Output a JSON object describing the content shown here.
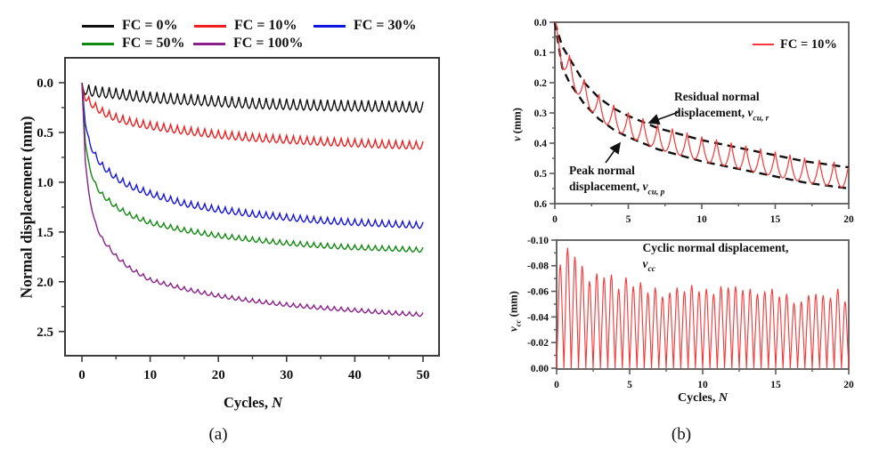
{
  "panel_a": {
    "caption": "(a)",
    "ylabel": "Normal displacement (mm)",
    "xlabel_pre": "Cycles, ",
    "xlabel_var": "N"
  },
  "panel_b": {
    "caption": "(b)",
    "xlabel_pre": "Cycles, ",
    "xlabel_var": "N",
    "top_ylabel_var": "v",
    "top_ylabel_rest": " (mm)",
    "bottom_ylabel_var": "v",
    "bottom_ylabel_sub": "cc",
    "bottom_ylabel_rest": " (mm)",
    "annotations": {
      "residual_line1": "Residual normal",
      "residual_line2_pre": "displacement, ",
      "residual_var": "v",
      "residual_sub": "cu, r",
      "peak_line1": "Peak normal",
      "peak_line2_pre": "displacement, ",
      "peak_var": "v",
      "peak_sub": "cu, p",
      "cyclic_pre": "Cyclic normal displacement, ",
      "cyclic_var": "v",
      "cyclic_sub": "cc"
    }
  },
  "chart_data": [
    {
      "id": "panel-a",
      "type": "line",
      "title": "",
      "xlabel": "Cycles, N",
      "ylabel": "Normal displacement (mm)",
      "xlim": [
        -2.6,
        52.4
      ],
      "ylim": [
        -0.25,
        2.75
      ],
      "y_inverted": true,
      "grid": false,
      "legend_position": "above",
      "xticks": [
        0,
        10,
        20,
        30,
        40,
        50
      ],
      "xtick_labels": [
        "0",
        "10",
        "20",
        "30",
        "40",
        "50"
      ],
      "xticks_minor": [
        5,
        15,
        25,
        35,
        45
      ],
      "yticks": [
        0.0,
        0.5,
        1.0,
        1.5,
        2.0,
        2.5
      ],
      "ytick_labels": [
        "0.0",
        "0.5",
        "1.0",
        "1.5",
        "2.0",
        "2.5"
      ],
      "yticks_minor": [
        0.25,
        0.75,
        1.25,
        1.75,
        2.25
      ],
      "n": [
        0,
        0.5,
        1,
        2,
        3,
        5,
        7,
        10,
        15,
        20,
        25,
        30,
        35,
        40,
        45,
        50
      ],
      "series": [
        {
          "name": "FC = 0%",
          "color": "#111111",
          "amplitude": 0.11,
          "residual": [
            0,
            0.01,
            0.02,
            0.03,
            0.04,
            0.05,
            0.07,
            0.09,
            0.11,
            0.13,
            0.15,
            0.16,
            0.17,
            0.175,
            0.18,
            0.19
          ]
        },
        {
          "name": "FC = 10%",
          "color": "#f01e1e",
          "amplitude": 0.08,
          "residual": [
            0,
            0.1,
            0.14,
            0.2,
            0.25,
            0.31,
            0.35,
            0.39,
            0.44,
            0.48,
            0.51,
            0.53,
            0.55,
            0.565,
            0.58,
            0.59
          ]
        },
        {
          "name": "FC = 30%",
          "color": "#1414e0",
          "amplitude": 0.065,
          "residual": [
            0,
            0.35,
            0.55,
            0.7,
            0.8,
            0.92,
            1.0,
            1.08,
            1.18,
            1.24,
            1.285,
            1.32,
            1.35,
            1.37,
            1.385,
            1.4
          ]
        },
        {
          "name": "FC = 50%",
          "color": "#0f8a0f",
          "amplitude": 0.05,
          "residual": [
            0,
            0.55,
            0.8,
            1.0,
            1.1,
            1.22,
            1.3,
            1.38,
            1.455,
            1.51,
            1.55,
            1.585,
            1.61,
            1.63,
            1.64,
            1.655
          ]
        },
        {
          "name": "FC = 100%",
          "color": "#8a1f8a",
          "amplitude": 0.04,
          "residual": [
            0,
            0.75,
            1.1,
            1.4,
            1.55,
            1.72,
            1.84,
            1.96,
            2.05,
            2.12,
            2.17,
            2.21,
            2.24,
            2.265,
            2.29,
            2.31
          ]
        }
      ]
    },
    {
      "id": "panel-b-top",
      "type": "line",
      "title": "",
      "xlabel": "",
      "ylabel": "v (mm)",
      "xlim": [
        0,
        20
      ],
      "ylim": [
        0,
        0.6
      ],
      "y_inverted": true,
      "grid": false,
      "legend_position": "upper right",
      "xticks": [
        0,
        5,
        10,
        15,
        20
      ],
      "xtick_labels": [
        "0",
        "5",
        "10",
        "15",
        "20"
      ],
      "xticks_minor": [
        2.5,
        7.5,
        12.5,
        17.5
      ],
      "yticks": [
        0.0,
        0.1,
        0.2,
        0.3,
        0.4,
        0.5,
        0.6
      ],
      "ytick_labels": [
        "0.0",
        "0.1",
        "0.2",
        "0.3",
        "0.4",
        "0.5",
        "0.6"
      ],
      "yticks_minor": [
        0.05,
        0.15,
        0.25,
        0.35,
        0.45,
        0.55
      ],
      "n": [
        0,
        0.5,
        1,
        2,
        3,
        4,
        5,
        7,
        10,
        12,
        15,
        17,
        20
      ],
      "series": [
        {
          "name": "FC = 10%",
          "color": "#f93535",
          "residual": [
            0,
            0.08,
            0.12,
            0.2,
            0.25,
            0.285,
            0.31,
            0.35,
            0.39,
            0.41,
            0.44,
            0.46,
            0.48
          ],
          "peak": [
            0,
            0.15,
            0.2,
            0.27,
            0.32,
            0.355,
            0.38,
            0.42,
            0.46,
            0.48,
            0.51,
            0.53,
            0.55
          ]
        }
      ],
      "envelope_color": "#111111"
    },
    {
      "id": "panel-b-bottom",
      "type": "line",
      "title": "",
      "xlabel": "Cycles, N",
      "ylabel": "vcc (mm)",
      "xlim": [
        0,
        20
      ],
      "ylim": [
        0,
        -0.101
      ],
      "y_inverted": true,
      "grid": false,
      "xticks": [
        0,
        5,
        10,
        15,
        20
      ],
      "xtick_labels": [
        "0",
        "5",
        "10",
        "15",
        "20"
      ],
      "xticks_minor": [
        2.5,
        7.5,
        12.5,
        17.5
      ],
      "yticks": [
        -0.1,
        -0.08,
        -0.06,
        -0.04,
        -0.02,
        0.0
      ],
      "ytick_labels": [
        "-0.10",
        "-0.08",
        "-0.06",
        "-0.04",
        "-0.02",
        "0.00"
      ],
      "yticks_minor": [
        -0.09,
        -0.07,
        -0.05,
        -0.03,
        -0.01
      ],
      "spikes_per_cycle": 2,
      "series": [
        {
          "name": "cyclic normal displacement",
          "color": "#f93535",
          "spike_peaks": [
            -0.081,
            -0.094,
            -0.087,
            -0.08,
            -0.068,
            -0.074,
            -0.071,
            -0.073,
            -0.062,
            -0.071,
            -0.064,
            -0.067,
            -0.059,
            -0.063,
            -0.056,
            -0.059,
            -0.063,
            -0.06,
            -0.065,
            -0.06,
            -0.062,
            -0.058,
            -0.064,
            -0.063,
            -0.064,
            -0.061,
            -0.062,
            -0.058,
            -0.06,
            -0.062,
            -0.056,
            -0.058,
            -0.051,
            -0.052,
            -0.057,
            -0.058,
            -0.057,
            -0.055,
            -0.062,
            -0.052
          ]
        }
      ]
    }
  ]
}
